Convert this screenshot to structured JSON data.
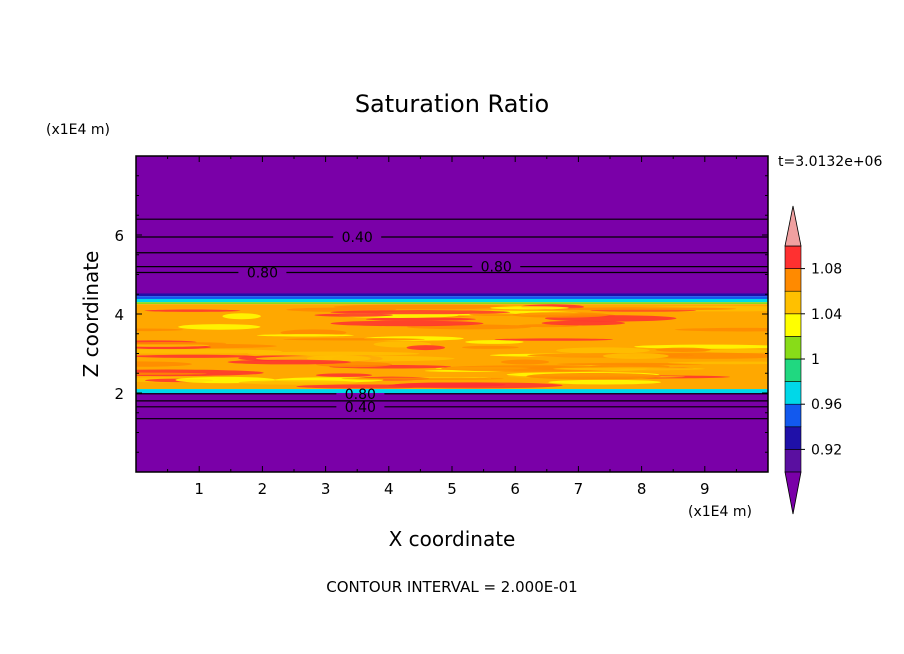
{
  "chart_data": {
    "type": "heatmap",
    "title": "Saturation Ratio",
    "xlabel": "X coordinate",
    "ylabel": "Z coordinate",
    "x_units": "(x1E4 m)",
    "y_units": "(x1E4 m)",
    "time_label": "t=3.0132e+06",
    "footer": "CONTOUR INTERVAL = 2.000E-01",
    "xlim": [
      0,
      10
    ],
    "ylim": [
      0,
      8
    ],
    "x_ticks": [
      1,
      2,
      3,
      4,
      5,
      6,
      7,
      8,
      9
    ],
    "y_ticks": [
      2,
      4,
      6
    ],
    "x_tick_labels": [
      "1",
      "2",
      "3",
      "4",
      "5",
      "6",
      "7",
      "8",
      "9"
    ],
    "y_tick_labels": [
      "2",
      "4",
      "6"
    ],
    "colorbar": {
      "levels": [
        0.9,
        0.92,
        0.94,
        0.96,
        0.98,
        1.0,
        1.02,
        1.04,
        1.06,
        1.08,
        1.1
      ],
      "colors": [
        "#5a0fa0",
        "#1f10a8",
        "#1259ee",
        "#00d8e8",
        "#20d880",
        "#88dc18",
        "#ffff00",
        "#ffc000",
        "#ff8a00",
        "#ff3030"
      ],
      "under_color": "#7a00a8",
      "over_color": "#f0a0a0",
      "tick_values": [
        0.92,
        0.96,
        1.0,
        1.04,
        1.08
      ],
      "tick_labels": [
        "0.92",
        "0.96",
        "1",
        "1.04",
        "1.08"
      ]
    },
    "field_bands": [
      {
        "z_min": 4.5,
        "z_max": 8.0,
        "value": 0.5,
        "color": "#7a00a8"
      },
      {
        "z_min": 4.45,
        "z_max": 4.52,
        "value": 0.92,
        "color": "#1f10a8"
      },
      {
        "z_min": 4.38,
        "z_max": 4.45,
        "value": 0.95,
        "color": "#1259ee"
      },
      {
        "z_min": 4.3,
        "z_max": 4.38,
        "value": 0.97,
        "color": "#00d8e8"
      },
      {
        "z_min": 4.25,
        "z_max": 4.3,
        "value": 1.0,
        "color": "#88dc18"
      },
      {
        "z_min": 2.1,
        "z_max": 4.25,
        "value": 1.05,
        "color": "#ffa800"
      },
      {
        "z_min": 2.0,
        "z_max": 2.1,
        "value": 0.97,
        "color": "#00d8e8"
      },
      {
        "z_min": 0.0,
        "z_max": 2.0,
        "value": 0.5,
        "color": "#7a00a8"
      }
    ],
    "contours": [
      {
        "z": 6.4,
        "label": ""
      },
      {
        "z": 5.95,
        "label": "0.40",
        "label_x": 3.5
      },
      {
        "z": 5.55,
        "label": ""
      },
      {
        "z": 5.2,
        "label": "0.80",
        "label_x": 5.7
      },
      {
        "z": 5.05,
        "label": "0.80",
        "label_x": 2.0
      },
      {
        "z": 1.98,
        "label": "0.80",
        "label_x": 3.55
      },
      {
        "z": 1.8,
        "label": ""
      },
      {
        "z": 1.65,
        "label": "0.40",
        "label_x": 3.55
      },
      {
        "z": 1.35,
        "label": ""
      }
    ]
  }
}
